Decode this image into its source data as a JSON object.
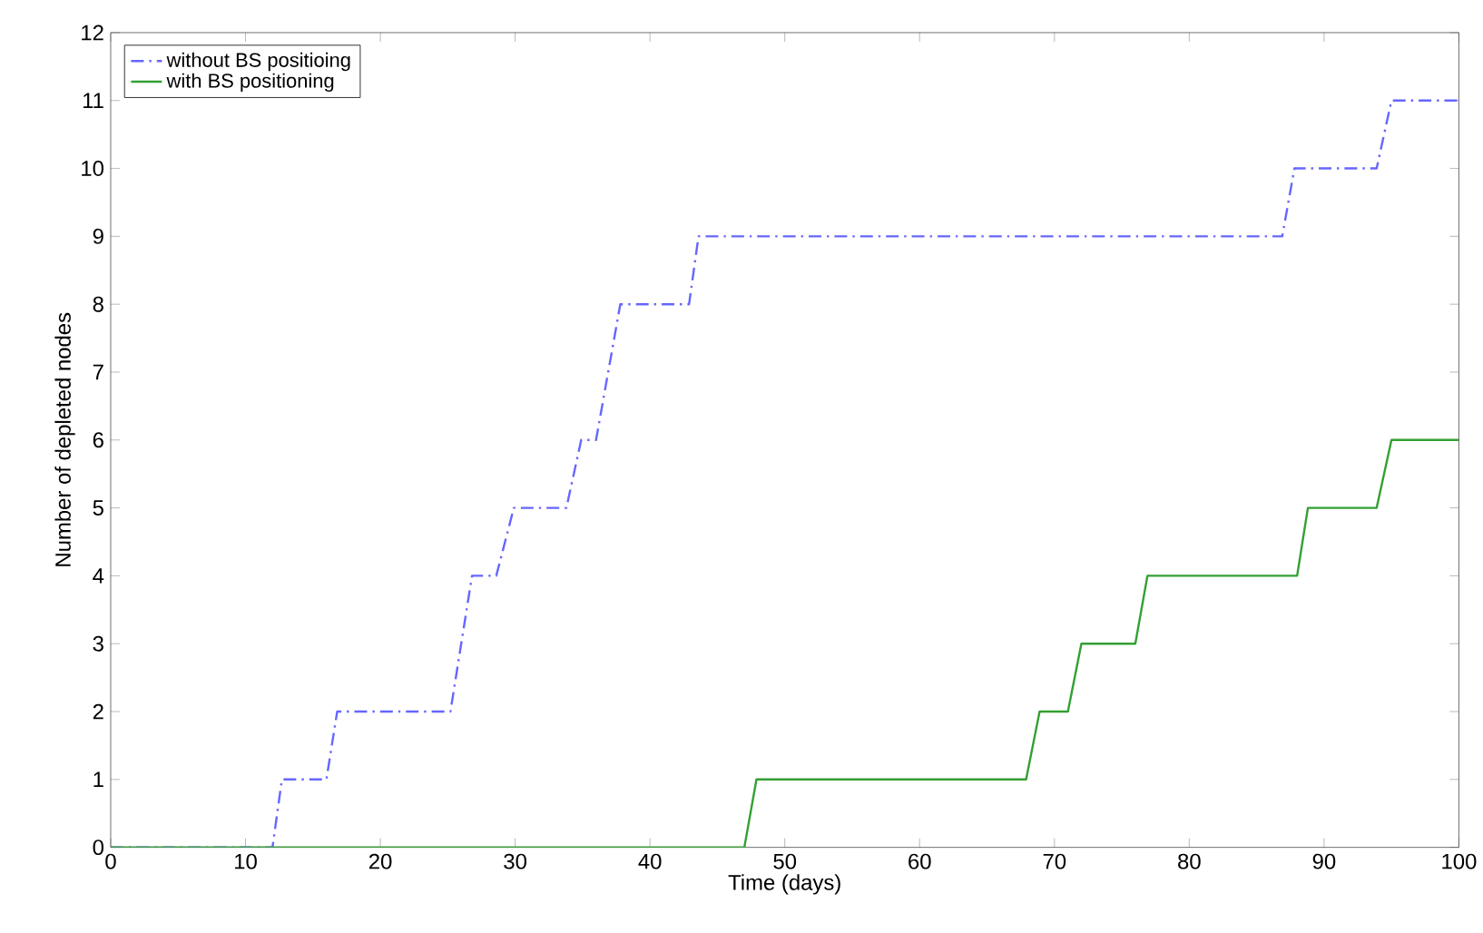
{
  "chart_data": {
    "type": "line",
    "xlabel": "Time (days)",
    "ylabel": "Number of depleted nodes",
    "xlim": [
      0,
      100
    ],
    "ylim": [
      0,
      12
    ],
    "xticks": [
      0,
      10,
      20,
      30,
      40,
      50,
      60,
      70,
      80,
      90,
      100
    ],
    "yticks": [
      0,
      1,
      2,
      3,
      4,
      5,
      6,
      7,
      8,
      9,
      10,
      11,
      12
    ],
    "legend": "top left",
    "grid": false,
    "marker": "none",
    "series": [
      {
        "name": "without BS positioing",
        "color": "#6666ff",
        "line_style": "dashdot",
        "x": [
          0,
          12,
          12.7,
          16,
          16.8,
          25.2,
          26.8,
          28.6,
          29.9,
          33.8,
          34.9,
          36,
          37.8,
          42.9,
          43.6,
          86.9,
          87.8,
          93.9,
          95,
          100
        ],
        "values": [
          0,
          0,
          1,
          1,
          2,
          2,
          4,
          4,
          5,
          5,
          6,
          6,
          8,
          8,
          9,
          9,
          10,
          10,
          11,
          11
        ]
      },
      {
        "name": "with BS positioning",
        "color": "#33a033",
        "line_style": "solid",
        "x": [
          0,
          47,
          47.9,
          67.9,
          68.9,
          71,
          72,
          76,
          76.9,
          88,
          88.8,
          93.9,
          95,
          100
        ],
        "values": [
          0,
          0,
          1,
          1,
          2,
          2,
          3,
          3,
          4,
          4,
          5,
          5,
          6,
          6
        ]
      }
    ]
  }
}
